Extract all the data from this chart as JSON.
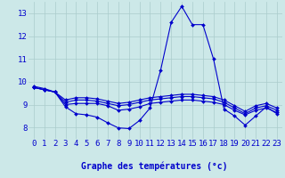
{
  "title": "Graphe des températures (°c)",
  "background_color": "#cce8e8",
  "grid_color": "#aacccc",
  "line_color": "#0000cc",
  "x_labels": [
    "0",
    "1",
    "2",
    "3",
    "4",
    "5",
    "6",
    "7",
    "8",
    "9",
    "10",
    "11",
    "12",
    "13",
    "14",
    "15",
    "16",
    "17",
    "18",
    "19",
    "20",
    "21",
    "22",
    "23"
  ],
  "ylim": [
    7.5,
    13.5
  ],
  "yticks": [
    8,
    9,
    10,
    11,
    12,
    13
  ],
  "series": [
    [
      9.8,
      9.7,
      9.55,
      8.9,
      8.6,
      8.55,
      8.45,
      8.2,
      7.98,
      7.95,
      8.3,
      8.85,
      10.5,
      12.6,
      13.3,
      12.5,
      12.5,
      11.0,
      8.8,
      8.5,
      8.1,
      8.5,
      8.9,
      8.6
    ],
    [
      9.75,
      9.65,
      9.55,
      9.0,
      9.05,
      9.05,
      9.05,
      8.95,
      8.75,
      8.8,
      8.9,
      9.05,
      9.1,
      9.15,
      9.2,
      9.2,
      9.15,
      9.1,
      9.0,
      8.75,
      8.55,
      8.75,
      8.85,
      8.65
    ],
    [
      9.75,
      9.65,
      9.55,
      9.1,
      9.2,
      9.2,
      9.15,
      9.05,
      8.95,
      9.0,
      9.1,
      9.2,
      9.25,
      9.3,
      9.35,
      9.35,
      9.3,
      9.25,
      9.1,
      8.85,
      8.6,
      8.85,
      8.95,
      8.75
    ],
    [
      9.75,
      9.65,
      9.55,
      9.2,
      9.3,
      9.3,
      9.25,
      9.15,
      9.05,
      9.1,
      9.2,
      9.3,
      9.35,
      9.4,
      9.45,
      9.45,
      9.4,
      9.35,
      9.2,
      8.95,
      8.7,
      8.95,
      9.05,
      8.85
    ]
  ],
  "marker": "D",
  "marker_size": 2.0,
  "linewidth": 0.8,
  "tick_fontsize": 6.5,
  "title_fontsize": 7.0
}
